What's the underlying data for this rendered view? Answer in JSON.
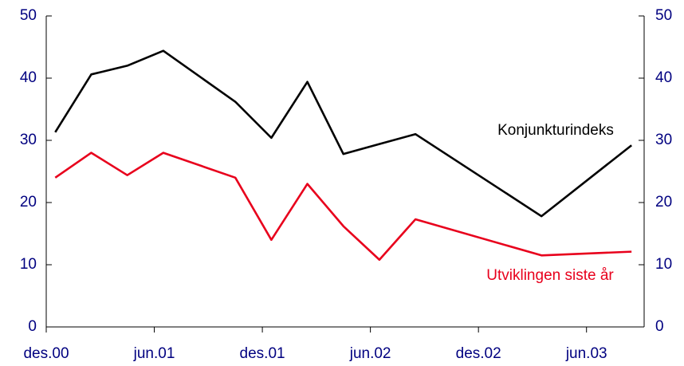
{
  "chart_data": {
    "type": "line",
    "x": [
      0.5,
      2.5,
      4.5,
      6.5,
      10.5,
      12.5,
      14.5,
      16.5,
      18.5,
      20.5,
      27.5,
      32.5
    ],
    "series": [
      {
        "name": "Konjunkturindeks",
        "color": "#000000",
        "values": [
          31.3,
          40.6,
          42,
          44.4,
          36.2,
          30.4,
          39.4,
          27.8,
          29.4,
          31,
          17.8,
          29.2
        ]
      },
      {
        "name": "Utviklingen siste år",
        "color": "#e8001c",
        "values": [
          24,
          28,
          24.4,
          28,
          24,
          14,
          23,
          16.2,
          10.8,
          17.3,
          11.5,
          12.1
        ]
      }
    ],
    "xlim": [
      0,
      33.2
    ],
    "xticks": [
      {
        "value": 0,
        "label": "des.00"
      },
      {
        "value": 6,
        "label": "jun.01"
      },
      {
        "value": 12,
        "label": "des.01"
      },
      {
        "value": 18,
        "label": "jun.02"
      },
      {
        "value": 24,
        "label": "des.02"
      },
      {
        "value": 30,
        "label": "jun.03"
      }
    ],
    "ylim": [
      0,
      50
    ],
    "yticks": [
      0,
      10,
      20,
      30,
      40,
      50
    ],
    "y2lim": [
      0,
      50
    ],
    "y2ticks": [
      0,
      10,
      20,
      30,
      40,
      50
    ]
  }
}
